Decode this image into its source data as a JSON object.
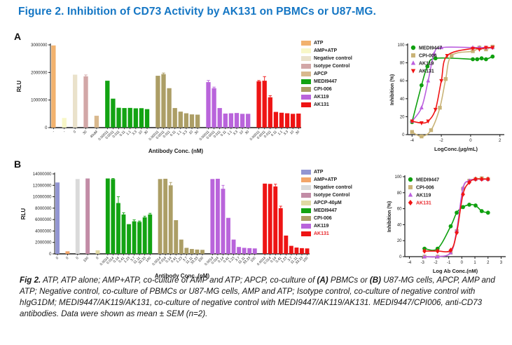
{
  "title": "Figure 2. Inhibition of CD73 Activity by AK131 on PBMCs or U87-MG.",
  "accent_color": "#1476C4",
  "panels": [
    {
      "label": "A",
      "bar_chart_index": 0,
      "line_chart_index": 1
    },
    {
      "label": "B",
      "bar_chart_index": 2,
      "line_chart_index": 3
    }
  ],
  "chart_data": [
    {
      "id": "panel-a-bar",
      "type": "bar",
      "ylabel": "RLU",
      "xlabel": "Antibody Conc. (nM)",
      "ylim": [
        0,
        3000000
      ],
      "yticks": [
        0,
        1000000,
        2000000,
        3000000
      ],
      "legend": [
        {
          "label": "ATP",
          "color": "#F2B26E"
        },
        {
          "label": "AMP+ATP",
          "color": "#F8F7C8"
        },
        {
          "label": "Negative control",
          "color": "#EAE2CB"
        },
        {
          "label": "Isotype Control",
          "color": "#D2A7A7"
        },
        {
          "label": "APCP",
          "color": "#D9B98E"
        },
        {
          "label": "MEDI9447",
          "color": "#12A312"
        },
        {
          "label": "CPI-006",
          "color": "#AC9E66"
        },
        {
          "label": "AK119",
          "color": "#B964DB"
        },
        {
          "label": "AK131",
          "color": "#EE1414"
        }
      ],
      "groups": [
        {
          "name": "ATP",
          "color": "#F2B26E",
          "bars": [
            {
              "label": "-",
              "value": 2980000
            }
          ]
        },
        {
          "name": "AMP+ATP",
          "color": "#F8F7C8",
          "bars": [
            {
              "label": "-",
              "value": 350000
            }
          ]
        },
        {
          "name": "Negative control",
          "color": "#EAE2CB",
          "bars": [
            {
              "label": "0",
              "value": 1920000
            }
          ]
        },
        {
          "name": "Isotype Control",
          "color": "#D2A7A7",
          "bars": [
            {
              "label": "30",
              "value": 1860000,
              "err": 50000
            }
          ]
        },
        {
          "name": "APCP",
          "color": "#D9B98E",
          "bars": [
            {
              "label": "40uM",
              "value": 430000
            }
          ]
        },
        {
          "name": "MEDI9447",
          "color": "#12A312",
          "bars": [
            {
              "label": "0.00011",
              "value": 1700000
            },
            {
              "label": "0.0011",
              "value": 1050000
            },
            {
              "label": "0.011",
              "value": 720000
            },
            {
              "label": "0.11",
              "value": 710000
            },
            {
              "label": "1.1",
              "value": 715000
            },
            {
              "label": "3.3",
              "value": 700000
            },
            {
              "label": "10",
              "value": 705000
            },
            {
              "label": "30",
              "value": 670000
            }
          ]
        },
        {
          "name": "CPI-006",
          "color": "#AC9E66",
          "bars": [
            {
              "label": "0.00011",
              "value": 1880000
            },
            {
              "label": "0.0011",
              "value": 1940000,
              "err": 40000
            },
            {
              "label": "0.011",
              "value": 1430000
            },
            {
              "label": "0.11",
              "value": 710000
            },
            {
              "label": "1.1",
              "value": 580000
            },
            {
              "label": "3.3",
              "value": 520000
            },
            {
              "label": "10",
              "value": 480000
            },
            {
              "label": "30",
              "value": 470000
            }
          ]
        },
        {
          "name": "AK119",
          "color": "#B964DB",
          "bars": [
            {
              "label": "0.00011",
              "value": 1650000,
              "err": 60000
            },
            {
              "label": "0.0011",
              "value": 1430000,
              "err": 40000
            },
            {
              "label": "0.011",
              "value": 710000
            },
            {
              "label": "0.11",
              "value": 510000
            },
            {
              "label": "1.1",
              "value": 520000
            },
            {
              "label": "3.3",
              "value": 530000
            },
            {
              "label": "10",
              "value": 500000
            },
            {
              "label": "30",
              "value": 500000
            }
          ]
        },
        {
          "name": "AK131",
          "color": "#EE1414",
          "bars": [
            {
              "label": "0.00011",
              "value": 1680000,
              "err": 30000
            },
            {
              "label": "0.0011",
              "value": 1700000,
              "err": 150000
            },
            {
              "label": "0.011",
              "value": 1100000,
              "err": 60000
            },
            {
              "label": "0.11",
              "value": 570000
            },
            {
              "label": "1.1",
              "value": 540000
            },
            {
              "label": "3.3",
              "value": 520000
            },
            {
              "label": "10",
              "value": 500000
            },
            {
              "label": "30",
              "value": 510000
            }
          ]
        }
      ]
    },
    {
      "id": "panel-a-line",
      "type": "line",
      "xlabel": "LogConc.(μg/mL)",
      "ylabel": "Inhibition (%)",
      "xlim": [
        -4,
        2
      ],
      "ylim": [
        0,
        100
      ],
      "xticks": [
        -4,
        -2,
        0,
        2
      ],
      "yticks": [
        0,
        20,
        40,
        60,
        80,
        100
      ],
      "series": [
        {
          "name": "MEDI9447",
          "color": "#0FA00F",
          "marker": "circle",
          "x": [
            -4,
            -3.35,
            -2.95,
            -2.4,
            0.15,
            0.45,
            0.75,
            1.05,
            1.5
          ],
          "y": [
            14,
            55,
            76,
            85,
            84,
            84,
            85,
            84,
            87
          ]
        },
        {
          "name": "CPI-006",
          "color": "#C9B377",
          "marker": "square",
          "x": [
            -4,
            -3.35,
            -2.7,
            -2.1,
            -1.7,
            -1.3,
            0.15,
            0.6,
            1.05,
            1.5
          ],
          "y": [
            3,
            -2,
            5,
            30,
            62,
            88,
            93,
            97,
            95,
            98
          ]
        },
        {
          "name": "AK119",
          "color": "#BB5FDF",
          "marker": "triangle-up",
          "x": [
            -4,
            -3.35,
            -2.9,
            -2.5,
            -2.0,
            0.15,
            0.6,
            1.05,
            1.5
          ],
          "y": [
            15,
            30,
            60,
            90,
            97,
            97,
            97,
            97,
            97
          ]
        },
        {
          "name": "AK131",
          "color": "#F01414",
          "marker": "triangle-down",
          "x": [
            -4,
            -3.35,
            -2.9,
            -2.4,
            -2.0,
            -1.6,
            0.15,
            0.6,
            1.05,
            1.5
          ],
          "y": [
            15,
            13,
            15,
            28,
            60,
            88,
            96,
            95,
            97,
            97
          ]
        }
      ],
      "legend": [
        {
          "label": "MEDI9447",
          "color": "#0FA00F",
          "marker": "circle"
        },
        {
          "label": "CPI-006",
          "color": "#C9B377",
          "marker": "square"
        },
        {
          "label": "AK119",
          "color": "#BB5FDF",
          "marker": "triangle-up"
        },
        {
          "label": "AK131",
          "color": "#F01414",
          "marker": "triangle-down"
        }
      ]
    },
    {
      "id": "panel-b-bar",
      "type": "bar",
      "ylabel": "RLU",
      "xlabel": "Antibody Conc. (nM)",
      "ylim": [
        0,
        14000000
      ],
      "yticks": [
        0,
        2000000,
        4000000,
        6000000,
        8000000,
        10000000,
        12000000,
        14000000
      ],
      "legend": [
        {
          "label": "ATP",
          "color": "#9295D2"
        },
        {
          "label": "AMP+ATP",
          "color": "#F3A569"
        },
        {
          "label": "Negative control",
          "color": "#DADADA"
        },
        {
          "label": "Isotype Control",
          "color": "#C28CA6"
        },
        {
          "label": "APCP-40μM",
          "color": "#E0D9A3"
        },
        {
          "label": "MEDI9447",
          "color": "#12A312"
        },
        {
          "label": "CPI-006",
          "color": "#AC9E66"
        },
        {
          "label": "AK119",
          "color": "#B964DB"
        },
        {
          "label": "AK131",
          "color": "#EE1414",
          "label_color": "#E8262A"
        }
      ],
      "groups": [
        {
          "name": "ATP",
          "color": "#9295D2",
          "bars": [
            {
              "label": "0",
              "value": 12500000
            }
          ]
        },
        {
          "name": "AMP+ATP",
          "color": "#F3A569",
          "bars": [
            {
              "label": "0",
              "value": 450000
            }
          ]
        },
        {
          "name": "Negative control",
          "color": "#DADADA",
          "bars": [
            {
              "label": "0",
              "value": 13100000
            }
          ]
        },
        {
          "name": "Isotype Control",
          "color": "#C28CA6",
          "bars": [
            {
              "label": "100",
              "value": 13200000
            }
          ]
        },
        {
          "name": "APCP-40μM",
          "color": "#E0D9A3",
          "bars": [
            {
              "label": "0",
              "value": 620000
            }
          ]
        },
        {
          "name": "MEDI9447",
          "color": "#12A312",
          "bars": [
            {
              "label": "0.0014",
              "value": 13200000
            },
            {
              "label": "0.014",
              "value": 13100000,
              "err": 100000
            },
            {
              "label": "0.14",
              "value": 8900000,
              "err": 1100000
            },
            {
              "label": "0.41",
              "value": 6900000,
              "err": 300000
            },
            {
              "label": "1.23",
              "value": 5200000
            },
            {
              "label": "3.7",
              "value": 5700000,
              "err": 250000
            },
            {
              "label": "11.11",
              "value": 5600000,
              "err": 150000
            },
            {
              "label": "33.33",
              "value": 6400000,
              "err": 200000
            },
            {
              "label": "100",
              "value": 6900000,
              "err": 200000
            }
          ]
        },
        {
          "name": "CPI-006",
          "color": "#AC9E66",
          "bars": [
            {
              "label": "0.0014",
              "value": 13100000
            },
            {
              "label": "0.014",
              "value": 13150000
            },
            {
              "label": "0.14",
              "value": 12000000,
              "err": 500000
            },
            {
              "label": "0.41",
              "value": 5900000
            },
            {
              "label": "1.23",
              "value": 2500000
            },
            {
              "label": "3.7",
              "value": 1050000
            },
            {
              "label": "11.11",
              "value": 850000
            },
            {
              "label": "33.33",
              "value": 750000
            },
            {
              "label": "100",
              "value": 700000
            }
          ]
        },
        {
          "name": "AK119",
          "color": "#B964DB",
          "bars": [
            {
              "label": "0.0014",
              "value": 13100000
            },
            {
              "label": "0.014",
              "value": 13150000
            },
            {
              "label": "0.14",
              "value": 11400000,
              "err": 600000
            },
            {
              "label": "0.41",
              "value": 6300000
            },
            {
              "label": "1.23",
              "value": 2500000
            },
            {
              "label": "3.7",
              "value": 1200000
            },
            {
              "label": "11.11",
              "value": 1050000
            },
            {
              "label": "33.33",
              "value": 1000000
            },
            {
              "label": "100",
              "value": 950000
            }
          ]
        },
        {
          "name": "AK131",
          "color": "#EE1414",
          "bars": [
            {
              "label": "0.0014",
              "value": 12300000
            },
            {
              "label": "0.014",
              "value": 12250000
            },
            {
              "label": "0.14",
              "value": 11800000,
              "err": 400000
            },
            {
              "label": "0.41",
              "value": 8000000,
              "err": 350000
            },
            {
              "label": "1.23",
              "value": 3200000
            },
            {
              "label": "3.7",
              "value": 1400000
            },
            {
              "label": "11.11",
              "value": 1100000
            },
            {
              "label": "33.33",
              "value": 1000000
            },
            {
              "label": "100",
              "value": 950000
            }
          ]
        }
      ]
    },
    {
      "id": "panel-b-line",
      "type": "line",
      "xlabel": "Log Ab Conc.(nM)",
      "ylabel": "Inhibition (%)",
      "xlim": [
        -4,
        3
      ],
      "ylim": [
        0,
        100
      ],
      "xticks": [
        -4,
        -3,
        -2,
        -1,
        0,
        1,
        2,
        3
      ],
      "yticks": [
        0,
        20,
        40,
        60,
        80,
        100
      ],
      "series": [
        {
          "name": "MEDI9447",
          "color": "#0FA00F",
          "marker": "circle",
          "x": [
            -2.85,
            -1.85,
            -0.85,
            -0.39,
            0.09,
            0.57,
            1.05,
            1.52,
            2.0
          ],
          "y": [
            10,
            10,
            38,
            55,
            62,
            65,
            64,
            57,
            55
          ]
        },
        {
          "name": "CPI-006",
          "color": "#C9B377",
          "marker": "square",
          "x": [
            -2.85,
            -1.85,
            -0.85,
            -0.39,
            0.09,
            0.57,
            1.05,
            1.52,
            2.0
          ],
          "y": [
            0,
            0,
            5,
            32,
            85,
            95,
            97,
            98,
            97
          ]
        },
        {
          "name": "AK119",
          "color": "#BB5FDF",
          "marker": "triangle-up",
          "x": [
            -2.85,
            -1.85,
            -0.85,
            -0.39,
            0.09,
            0.57,
            1.05,
            1.52,
            2.0
          ],
          "y": [
            0,
            0,
            5,
            33,
            86,
            95,
            97,
            97,
            97
          ]
        },
        {
          "name": "AK131",
          "color": "#F01414",
          "marker": "diamond",
          "x": [
            -2.85,
            -1.85,
            -0.85,
            -0.39,
            0.09,
            0.57,
            1.05,
            1.52,
            2.0
          ],
          "y": [
            7,
            7,
            8,
            30,
            78,
            93,
            97,
            97,
            97
          ]
        }
      ],
      "legend": [
        {
          "label": "MEDI9447",
          "color": "#0FA00F",
          "marker": "circle"
        },
        {
          "label": "CPI-006",
          "color": "#C9B377",
          "marker": "square"
        },
        {
          "label": "AK119",
          "color": "#BB5FDF",
          "marker": "triangle-up"
        },
        {
          "label": "AK131",
          "color": "#F01414",
          "marker": "diamond",
          "label_color": "#E8262A"
        }
      ]
    }
  ],
  "caption_segments": [
    {
      "text": "Fig 2.",
      "bold": true
    },
    {
      "text": " ATP, ATP alone; AMP+ATP, co-culture of AMP and ATP; APCP, co-culture of ",
      "bold": false
    },
    {
      "text": "(A)",
      "bold": true
    },
    {
      "text": " PBMCs or ",
      "bold": false
    },
    {
      "text": "(B)",
      "bold": true
    },
    {
      "text": " U87-MG cells, APCP, AMP and ATP; Negative control, co-culture of PBMCs or U87-MG cells, AMP and ATP; Isotype control, co-culture of negative control with hIgG1DM; MEDI9447/AK119/AK131, co-culture of negative control with MEDI9447/AK119/AK131. MEDI9447/CPI006, anti-CD73 antibodies. Data were shown as mean ± SEM (n=2).",
      "bold": false
    }
  ]
}
